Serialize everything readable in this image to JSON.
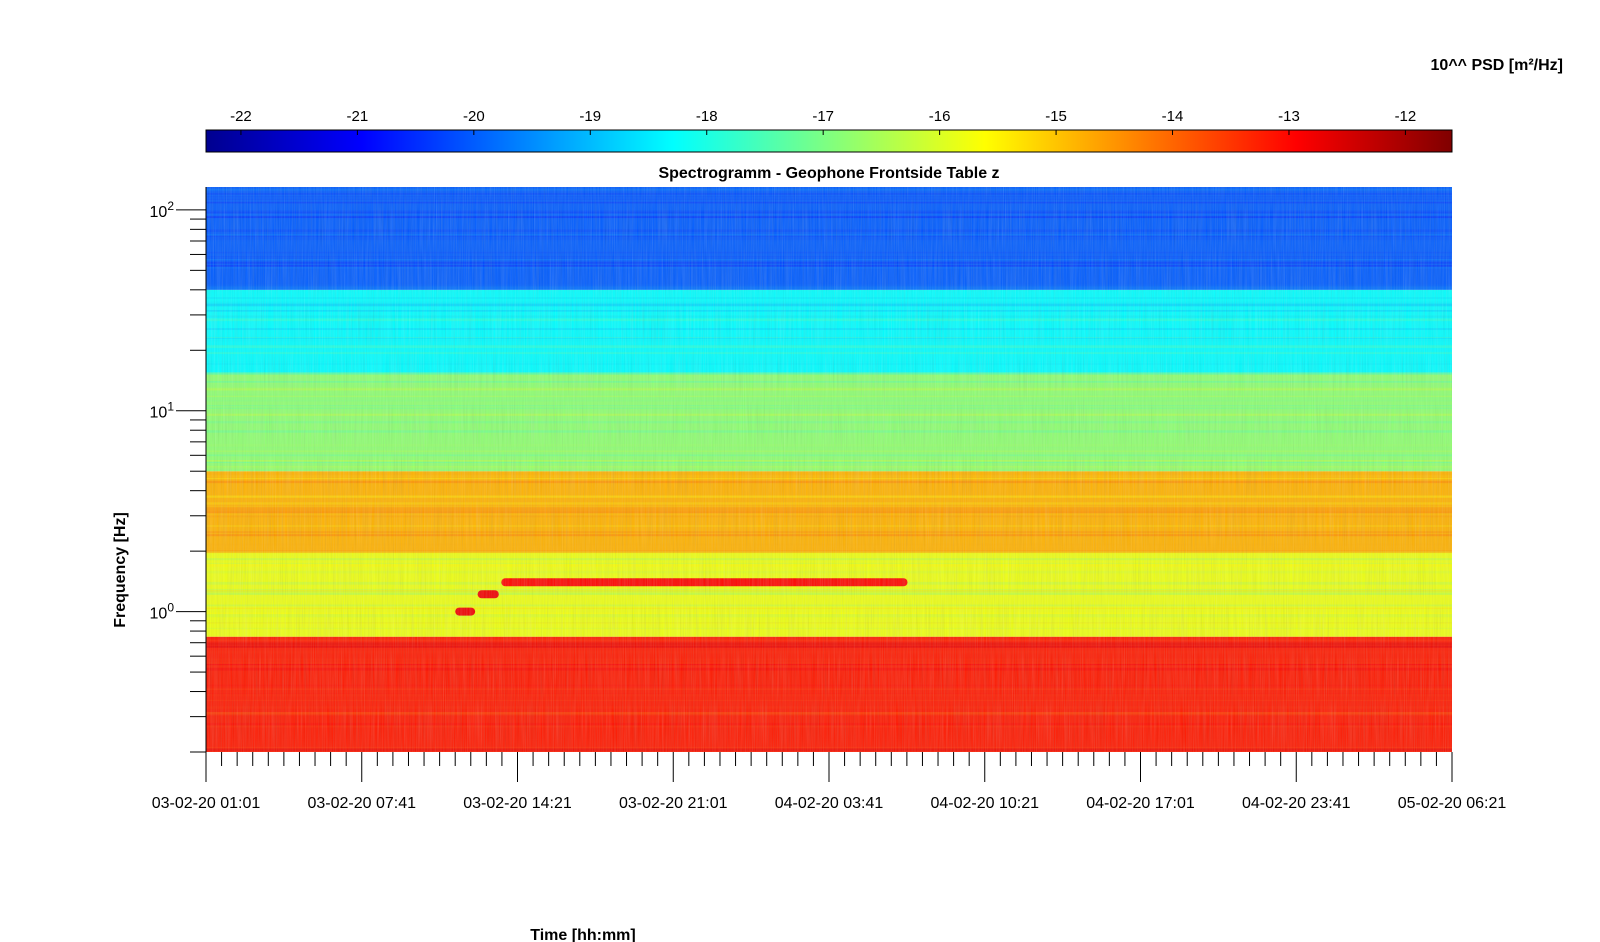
{
  "chart_data": {
    "type": "heatmap",
    "title": "Spectrogramm - Geophone Frontside Table z",
    "xlabel": "Time [hh:mm]",
    "ylabel": "Frequency [Hz]",
    "colorbar": {
      "label": "10^^ PSD [m²/Hz]",
      "range": [
        -22.3,
        -11.6
      ],
      "ticks": [
        "-22",
        "-21",
        "-20",
        "-19",
        "-18",
        "-17",
        "-16",
        "-15",
        "-14",
        "-13",
        "-12"
      ],
      "tick_values": [
        -22,
        -21,
        -20,
        -19,
        -18,
        -17,
        -16,
        -15,
        -14,
        -13,
        -12
      ],
      "colormap": "jet"
    },
    "x_ticks": [
      "03-02-20 01:01",
      "03-02-20 07:41",
      "03-02-20 14:21",
      "03-02-20 21:01",
      "04-02-20 03:41",
      "04-02-20 10:21",
      "04-02-20 17:01",
      "04-02-20 23:41",
      "05-02-20 06:21"
    ],
    "x_minor_per_major": 10,
    "y_scale": "log",
    "y_range": [
      0.2,
      130
    ],
    "y_ticks": [
      {
        "value": 1,
        "base": "10",
        "exp": "0"
      },
      {
        "value": 10,
        "base": "10",
        "exp": "1"
      },
      {
        "value": 100,
        "base": "10",
        "exp": "2"
      }
    ],
    "bands": [
      {
        "f_low": 0.2,
        "f_high": 0.75,
        "psd": -13.2
      },
      {
        "f_low": 0.75,
        "f_high": 2.0,
        "psd": -15.8
      },
      {
        "f_low": 2.0,
        "f_high": 5.0,
        "psd": -14.8
      },
      {
        "f_low": 5.0,
        "f_high": 15.5,
        "psd": -16.8
      },
      {
        "f_low": 15.5,
        "f_high": 40,
        "psd": -18.3
      },
      {
        "f_low": 40,
        "f_high": 130,
        "psd": -20.0
      }
    ],
    "features": [
      {
        "name": "",
        "f": 1.4,
        "t_start": 0.237,
        "t_end": 0.563,
        "psd": -13.0
      },
      {
        "name": "",
        "f": 1.22,
        "t_start": 0.218,
        "t_end": 0.235,
        "psd": -12.8
      },
      {
        "name": "",
        "f": 1.0,
        "t_start": 0.2,
        "t_end": 0.216,
        "psd": -12.8
      }
    ],
    "colors": {
      "background": "#ffffff",
      "axis": "#000000"
    }
  }
}
